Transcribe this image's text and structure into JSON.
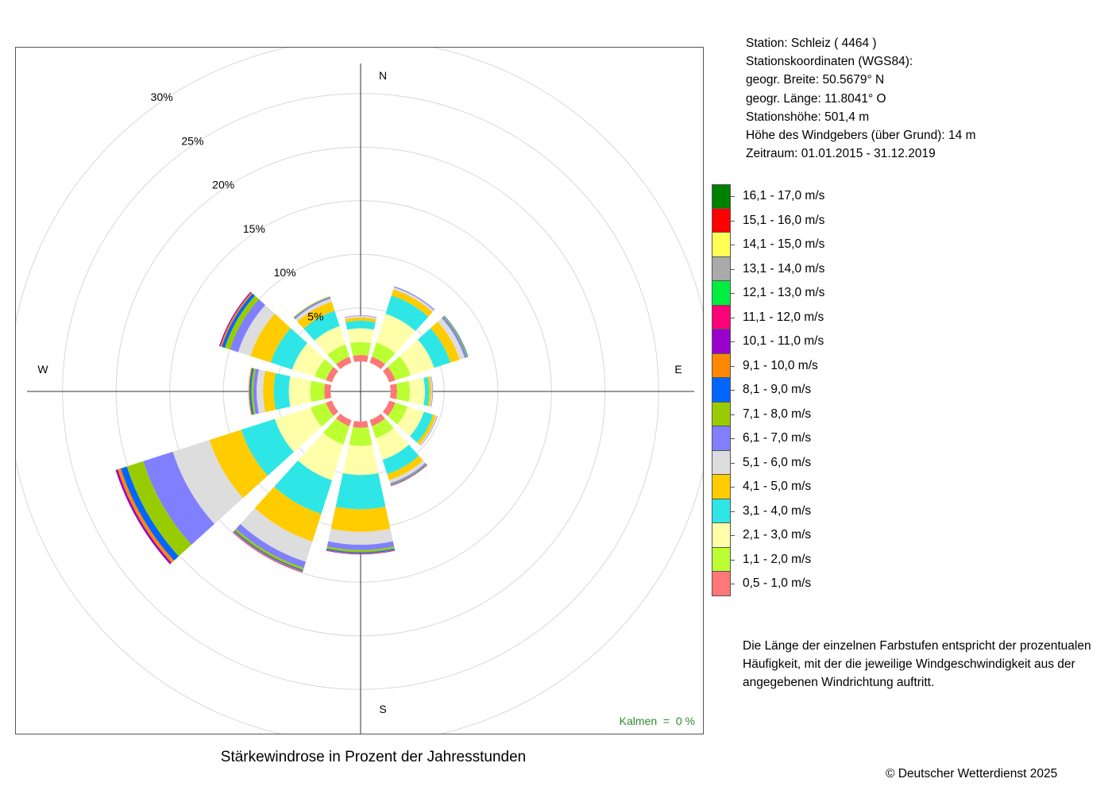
{
  "station": {
    "lines": [
      "Station:  Schleiz  ( 4464 )",
      "Stationskoordinaten (WGS84):",
      "geogr. Breite: 50.5679° N",
      "geogr. Länge: 11.8041° O",
      "Stationshöhe: 501,4 m",
      "Höhe des Windgebers (über Grund): 14 m",
      "Zeitraum: 01.01.2015 - 31.12.2019"
    ]
  },
  "note": {
    "lines": [
      "Die Länge der einzelnen Farbstufen entspricht der prozentualen",
      "Häufigkeit, mit der die jeweilige Windgeschwindigkeit aus der",
      "angegebenen Windrichtung auftritt."
    ]
  },
  "copyright": "© Deutscher Wetterdienst  2025",
  "chart_data": {
    "type": "wind-rose",
    "title": "Stärkewindrose in Prozent der Jahresstunden",
    "calm_label": "Kalmen  =  0 %",
    "compass_labels": {
      "N": "N",
      "E": "E",
      "S": "S",
      "W": "W"
    },
    "radial_ticks": [
      {
        "value": 5,
        "label": "5%"
      },
      {
        "value": 10,
        "label": "10%"
      },
      {
        "value": 15,
        "label": "15%"
      },
      {
        "value": 20,
        "label": "20%"
      },
      {
        "value": 25,
        "label": "25%"
      },
      {
        "value": 30,
        "label": "30%"
      }
    ],
    "rmax": 30,
    "inner_offset": 2.8,
    "legend": [
      {
        "label": "16,1 - 17,0 m/s",
        "color": "#008000"
      },
      {
        "label": "15,1 - 16,0 m/s",
        "color": "#ff0000"
      },
      {
        "label": "14,1 - 15,0 m/s",
        "color": "#ffff55"
      },
      {
        "label": "13,1 - 14,0 m/s",
        "color": "#aaaaaa"
      },
      {
        "label": "12,1 - 13,0 m/s",
        "color": "#00ee40"
      },
      {
        "label": "11,1 - 12,0 m/s",
        "color": "#ff0077"
      },
      {
        "label": "10,1 - 11,0 m/s",
        "color": "#9900cc"
      },
      {
        "label": "9,1 - 10,0 m/s",
        "color": "#ff8800"
      },
      {
        "label": "8,1 - 9,0 m/s",
        "color": "#0066ff"
      },
      {
        "label": "7,1 - 8,0 m/s",
        "color": "#99cc00"
      },
      {
        "label": "6,1 - 7,0 m/s",
        "color": "#8080ff"
      },
      {
        "label": "5,1 - 6,0 m/s",
        "color": "#dddddd"
      },
      {
        "label": "4,1 - 5,0 m/s",
        "color": "#ffcc00"
      },
      {
        "label": "3,1 - 4,0 m/s",
        "color": "#2ee6e6"
      },
      {
        "label": "2,1 - 3,0 m/s",
        "color": "#ffffaa"
      },
      {
        "label": "1,1 - 2,0 m/s",
        "color": "#bbff33"
      },
      {
        "label": "0,5 - 1,0 m/s",
        "color": "#ff7777"
      }
    ],
    "directions": [
      {
        "deg": 0,
        "values": [
          0.6,
          1.2,
          1.3,
          0.7,
          0.3,
          0.15,
          0.05
        ]
      },
      {
        "deg": 30,
        "values": [
          0.6,
          1.4,
          2.8,
          1.8,
          0.6,
          0.2,
          0.1
        ]
      },
      {
        "deg": 60,
        "values": [
          0.6,
          1.5,
          2.3,
          1.6,
          0.9,
          0.5,
          0.2,
          0.1,
          0.05
        ]
      },
      {
        "deg": 90,
        "values": [
          0.6,
          1.2,
          1.4,
          0.4,
          0.2,
          0.1,
          0.05
        ]
      },
      {
        "deg": 120,
        "values": [
          0.6,
          1.2,
          1.6,
          0.9,
          0.3,
          0.1,
          0.05
        ]
      },
      {
        "deg": 150,
        "values": [
          0.6,
          1.2,
          2.1,
          1.4,
          0.6,
          0.3,
          0.1,
          0.05,
          0.05,
          0.05,
          0.03
        ]
      },
      {
        "deg": 180,
        "values": [
          0.6,
          1.7,
          2.7,
          3.2,
          2.1,
          1.2,
          0.5,
          0.2,
          0.1,
          0.05,
          0.05
        ]
      },
      {
        "deg": 210,
        "values": [
          0.6,
          1.8,
          3.5,
          3.3,
          2.7,
          2.0,
          0.6,
          0.2,
          0.1,
          0.08,
          0.06
        ]
      },
      {
        "deg": 240,
        "values": [
          0.6,
          1.5,
          3.5,
          3.3,
          3.1,
          3.6,
          2.9,
          1.6,
          0.6,
          0.3,
          0.2
        ]
      },
      {
        "deg": 270,
        "values": [
          0.6,
          1.3,
          2.0,
          1.4,
          1.0,
          0.6,
          0.3,
          0.2,
          0.15,
          0.1
        ]
      },
      {
        "deg": 300,
        "values": [
          0.6,
          1.1,
          2.2,
          2.1,
          2.0,
          1.2,
          0.8,
          0.5,
          0.3,
          0.15,
          0.1
        ]
      },
      {
        "deg": 330,
        "values": [
          0.6,
          1.2,
          1.8,
          1.5,
          0.9,
          0.3,
          0.15,
          0.08
        ]
      }
    ]
  }
}
